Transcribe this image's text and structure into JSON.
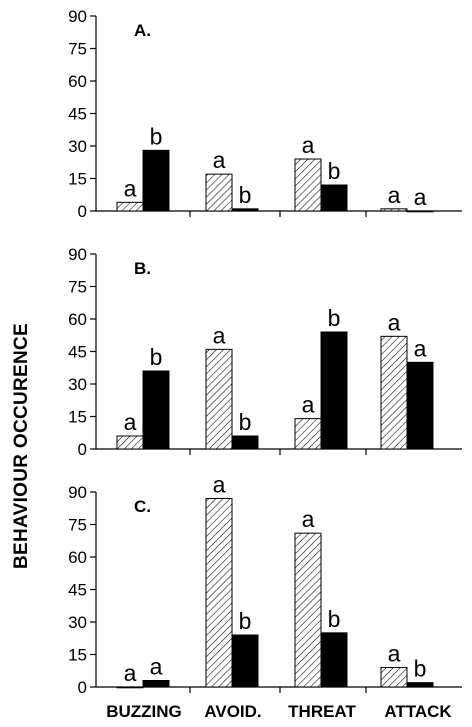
{
  "chart_data": {
    "type": "bar",
    "ylabel": "BEHAVIOUR OCCURENCE",
    "categories": [
      "BUZZING",
      "AVOID.",
      "THREAT",
      "ATTACK"
    ],
    "yticks": [
      "90",
      "75",
      "60",
      "45",
      "30",
      "15",
      "0"
    ],
    "ylim": [
      0,
      90
    ],
    "series_styles": [
      {
        "fill": "hatched",
        "color": "#ffffff",
        "stroke": "#000000"
      },
      {
        "fill": "solid",
        "color": "#000000",
        "stroke": "#000000"
      }
    ],
    "panels": [
      {
        "label": "A.",
        "series": [
          {
            "values": [
              4,
              17,
              24,
              1
            ],
            "significance": [
              "a",
              "a",
              "a",
              "a"
            ]
          },
          {
            "values": [
              28,
              1,
              12,
              0
            ],
            "significance": [
              "b",
              "b",
              "b",
              "a"
            ]
          }
        ]
      },
      {
        "label": "B.",
        "series": [
          {
            "values": [
              6,
              46,
              14,
              52
            ],
            "significance": [
              "a",
              "a",
              "a",
              "a"
            ]
          },
          {
            "values": [
              36,
              6,
              54,
              40
            ],
            "significance": [
              "b",
              "b",
              "b",
              "a"
            ]
          }
        ]
      },
      {
        "label": "C.",
        "series": [
          {
            "values": [
              0,
              87,
              71,
              9
            ],
            "significance": [
              "a",
              "a",
              "a",
              "a"
            ]
          },
          {
            "values": [
              3,
              24,
              25,
              2
            ],
            "significance": [
              "a",
              "b",
              "b",
              "b"
            ]
          }
        ]
      }
    ]
  }
}
